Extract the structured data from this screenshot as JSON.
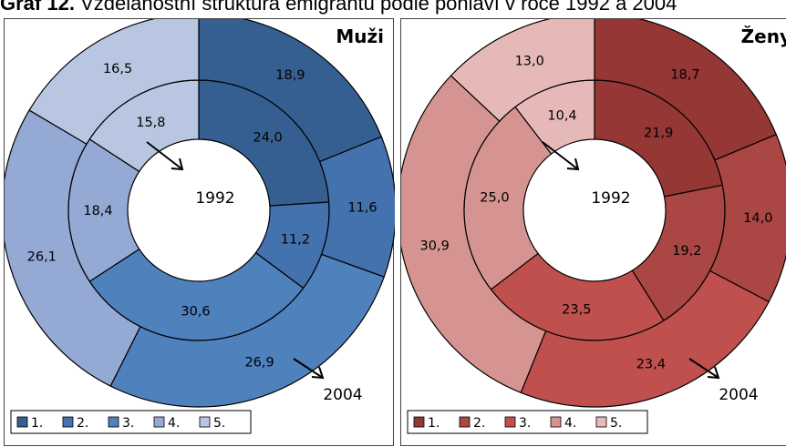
{
  "figure": {
    "label": "Graf 12.",
    "caption": "Vzdělanostní struktura emigrantů podle pohlaví v roce 1992 a 2004"
  },
  "chart_data": [
    {
      "type": "pie",
      "title": "Muži",
      "categories": [
        "1.",
        "2.",
        "3.",
        "4.",
        "5."
      ],
      "series": [
        {
          "name": "1992",
          "values": [
            24.0,
            11.2,
            30.6,
            18.4,
            15.8
          ]
        },
        {
          "name": "2004",
          "values": [
            18.9,
            11.6,
            26.9,
            26.1,
            16.5
          ]
        }
      ],
      "value_labels": {
        "1992": [
          "24,0",
          "11,2",
          "30,6",
          "18,4",
          "15,8"
        ],
        "2004": [
          "18,9",
          "11,6",
          "26,9",
          "26,1",
          "16,5"
        ]
      },
      "colors": [
        "#365F91",
        "#4472AE",
        "#4F81BD",
        "#95A9D5",
        "#B9C6E2"
      ],
      "legend": "bottom-left"
    },
    {
      "type": "pie",
      "title": "Ženy",
      "categories": [
        "1.",
        "2.",
        "3.",
        "4.",
        "5."
      ],
      "series": [
        {
          "name": "1992",
          "values": [
            21.9,
            19.2,
            23.5,
            25.0,
            10.4
          ]
        },
        {
          "name": "2004",
          "values": [
            18.7,
            14.0,
            23.4,
            30.9,
            13.0
          ]
        }
      ],
      "value_labels": {
        "1992": [
          "21,9",
          "19,2",
          "23,5",
          "25,0",
          "10,4"
        ],
        "2004": [
          "18,7",
          "14,0",
          "23,4",
          "30,9",
          "13,0"
        ]
      },
      "colors": [
        "#953735",
        "#AA4643",
        "#C0504D",
        "#D59491",
        "#E6B9B8"
      ],
      "legend": "bottom-left"
    }
  ]
}
